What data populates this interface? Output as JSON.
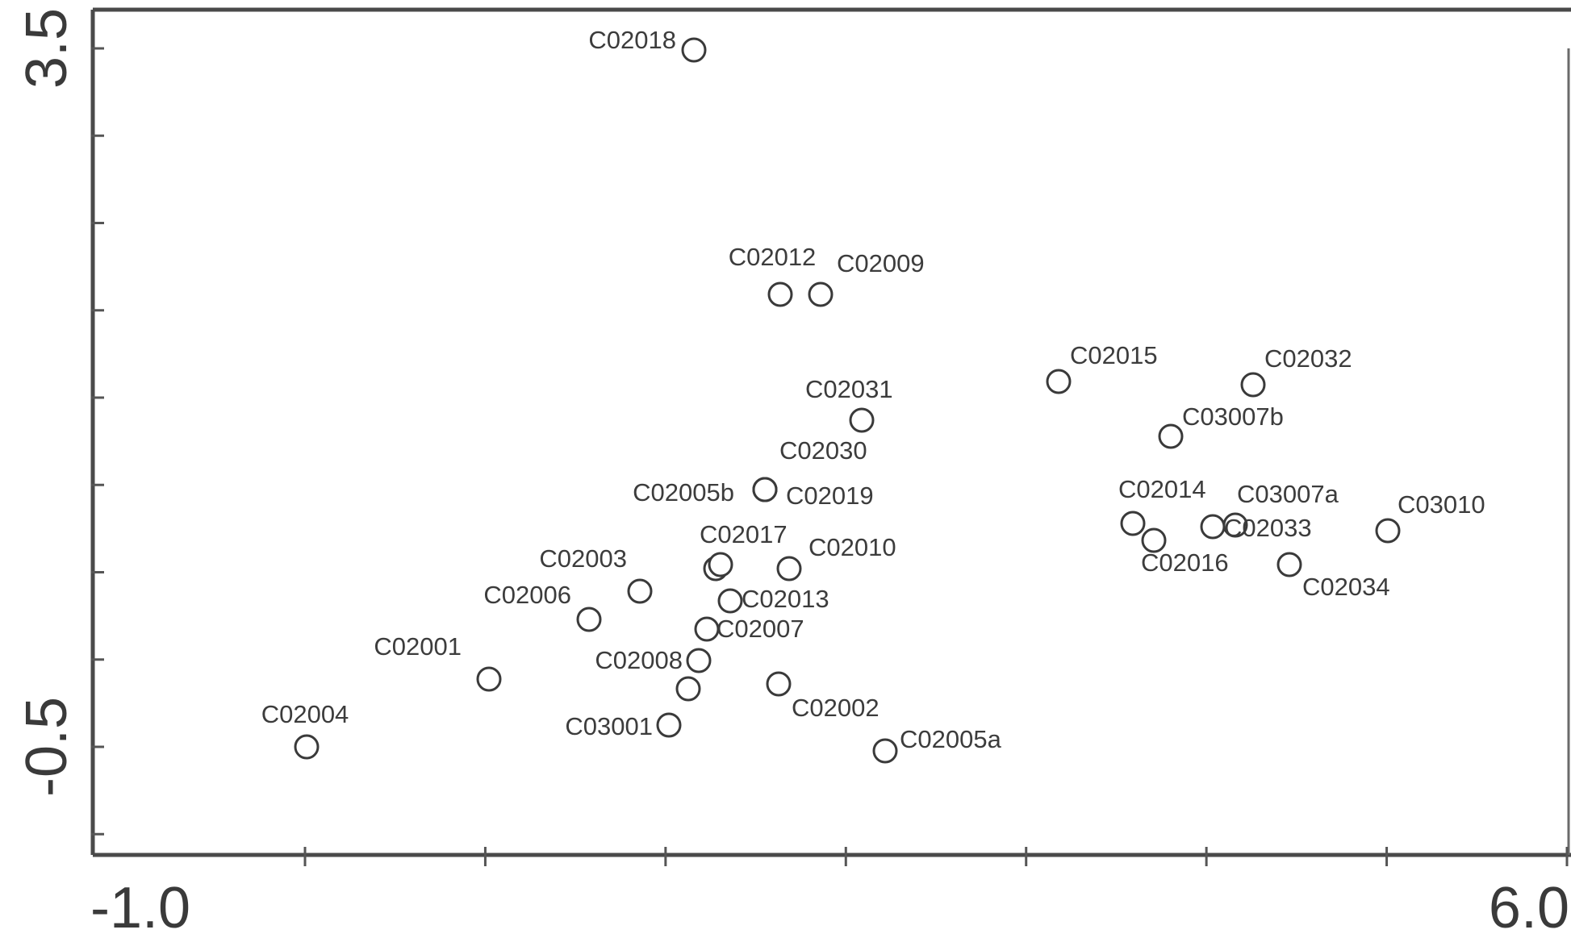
{
  "chart_data": {
    "type": "scatter",
    "xlim": [
      -1.0,
      6.0
    ],
    "ylim": [
      -1.5,
      3.5
    ],
    "x_tick_labels": [
      {
        "value": -1.0,
        "text": "-1.0"
      },
      {
        "value": 6.0,
        "text": "6.0"
      }
    ],
    "y_tick_labels": [
      {
        "value": 3.5,
        "text": "3.5"
      },
      {
        "value": -0.5,
        "text": "-0.5"
      }
    ],
    "x_minor_ticks": [
      0.0,
      1.0,
      2.0,
      3.0,
      4.0,
      5.0
    ],
    "y_minor_ticks": [
      3.0,
      2.5,
      2.0,
      1.5,
      1.0,
      0.5,
      0.0,
      -0.5,
      -1.0
    ],
    "grid": false,
    "points": [
      {
        "label": "C02018",
        "x": 0.84,
        "y": 3.26
      },
      {
        "label": "C02012",
        "x": 1.24,
        "y": 2.1
      },
      {
        "label": "C02009",
        "x": 1.43,
        "y": 2.1
      },
      {
        "label": "C02015",
        "x": 2.56,
        "y": 1.69
      },
      {
        "label": "C02032",
        "x": 3.48,
        "y": 1.67
      },
      {
        "label": "C02031",
        "x": 1.62,
        "y": 1.51
      },
      {
        "label": "C03007b",
        "x": 3.1,
        "y": 1.43
      },
      {
        "label": "C02030",
        "x": 1.17,
        "y": 1.18
      },
      {
        "label": "C02005b",
        "x": 1.17,
        "y": 1.18
      },
      {
        "label": "C02019",
        "x": 1.17,
        "y": 1.18
      },
      {
        "label": "C02014",
        "x": 2.92,
        "y": 1.05
      },
      {
        "label": "C02016",
        "x": 3.02,
        "y": 0.99
      },
      {
        "label": "C03007a",
        "x": 3.3,
        "y": 1.05
      },
      {
        "label": "C02033",
        "x": 3.4,
        "y": 1.05
      },
      {
        "label": "C03010",
        "x": 4.17,
        "y": 1.01
      },
      {
        "label": "C02034",
        "x": 3.64,
        "y": 0.84
      },
      {
        "label": "C02017",
        "x": 0.95,
        "y": 0.84
      },
      {
        "label": "C02010",
        "x": 1.29,
        "y": 0.83
      },
      {
        "label": "C02003",
        "x": 0.55,
        "y": 0.72
      },
      {
        "label": "C02013",
        "x": 1.0,
        "y": 0.66
      },
      {
        "label": "C02006",
        "x": 0.31,
        "y": 0.58
      },
      {
        "label": "C02007",
        "x": 0.88,
        "y": 0.52
      },
      {
        "label": "C02008",
        "x": 0.85,
        "y": 0.36
      },
      {
        "label": "C02001",
        "x": -0.17,
        "y": 0.28
      },
      {
        "label": "C02002",
        "x": 1.23,
        "y": 0.17
      },
      {
        "label": "C03001",
        "x": 0.7,
        "y": -0.4
      },
      {
        "label": "C02004",
        "x": -1.0,
        "y": -0.5
      },
      {
        "label": "C02005a",
        "x": 1.74,
        "y": -0.52
      }
    ],
    "extra_markers": [
      {
        "x": 0.96,
        "y": 0.82
      },
      {
        "x": 0.79,
        "y": 0.22
      }
    ]
  }
}
